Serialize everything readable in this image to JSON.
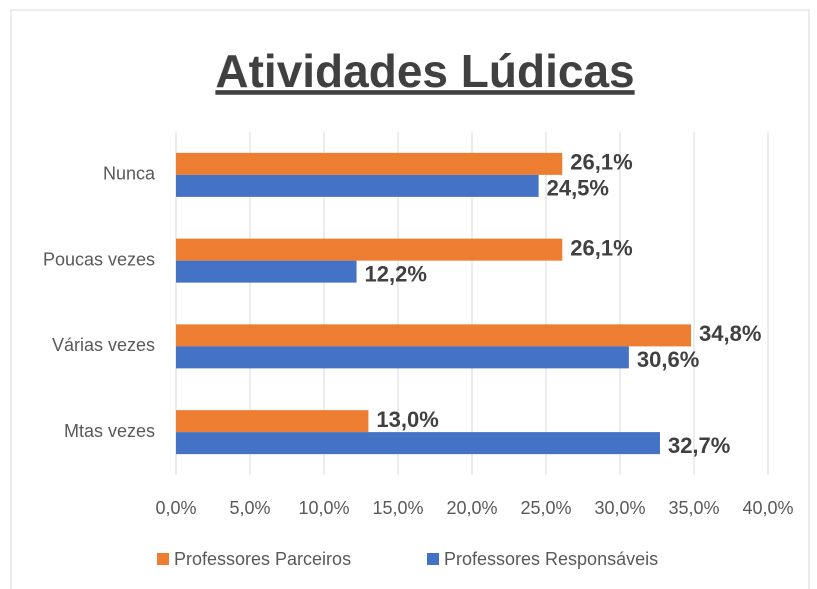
{
  "chart_data": {
    "type": "bar",
    "orientation": "horizontal",
    "title": "Atividades Lúdicas",
    "categories": [
      "Nunca",
      "Poucas vezes",
      "Várias vezes",
      "Mtas vezes"
    ],
    "series": [
      {
        "name": "Professores Parceiros",
        "color": "#ed7d31",
        "values": [
          26.1,
          26.1,
          34.8,
          13.0
        ],
        "value_labels": [
          "26,1%",
          "26,1%",
          "34,8%",
          "13,0%"
        ]
      },
      {
        "name": "Professores Responsáveis",
        "color": "#4472c4",
        "values": [
          24.5,
          12.2,
          30.6,
          32.7
        ],
        "value_labels": [
          "24,5%",
          "12,2%",
          "30,6%",
          "32,7%"
        ]
      }
    ],
    "xlim": [
      0,
      40
    ],
    "xticks": [
      {
        "value": 0,
        "label": "0,0%"
      },
      {
        "value": 5,
        "label": "5,0%"
      },
      {
        "value": 10,
        "label": "10,0%"
      },
      {
        "value": 15,
        "label": "15,0%"
      },
      {
        "value": 20,
        "label": "20,0%"
      },
      {
        "value": 25,
        "label": "25,0%"
      },
      {
        "value": 30,
        "label": "30,0%"
      },
      {
        "value": 35,
        "label": "35,0%"
      },
      {
        "value": 40,
        "label": "40,0%"
      }
    ],
    "grid": true,
    "legend": "bottom"
  }
}
